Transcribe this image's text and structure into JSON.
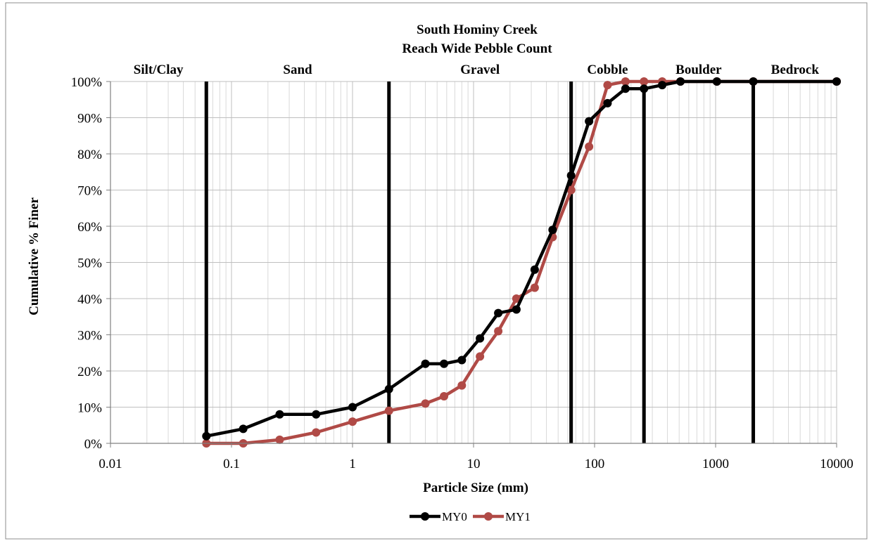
{
  "chart_data": {
    "type": "line",
    "title": "South Hominy Creek",
    "subtitle": "Reach Wide Pebble Count",
    "xlabel": "Particle Size (mm)",
    "ylabel": "Cumulative % Finer",
    "x_scale": "log",
    "xlim": [
      0.01,
      10000
    ],
    "ylim": [
      0,
      100
    ],
    "grid": true,
    "x_ticks": [
      "0.01",
      "0.1",
      "1",
      "10",
      "100",
      "1000",
      "10000"
    ],
    "y_ticks": [
      "0%",
      "10%",
      "20%",
      "30%",
      "40%",
      "50%",
      "60%",
      "70%",
      "80%",
      "90%",
      "100%"
    ],
    "legend_position": "bottom",
    "size_classes": [
      {
        "label": "Silt/Clay",
        "boundary": 0.062
      },
      {
        "label": "Sand",
        "boundary": 2
      },
      {
        "label": "Gravel",
        "boundary": 64
      },
      {
        "label": "Cobble",
        "boundary": 256
      },
      {
        "label": "Boulder",
        "boundary": 2048
      },
      {
        "label": "Bedrock",
        "boundary": null
      }
    ],
    "series": [
      {
        "name": "MY0",
        "color": "#000000",
        "x": [
          0.062,
          0.125,
          0.25,
          0.5,
          1,
          2,
          4,
          5.7,
          8,
          11.3,
          16,
          22.6,
          32,
          45,
          64,
          90,
          128,
          180,
          256,
          362,
          512,
          1024,
          2048,
          10000
        ],
        "y": [
          2,
          4,
          8,
          8,
          10,
          15,
          22,
          22,
          23,
          29,
          36,
          37,
          48,
          59,
          74,
          89,
          94,
          98,
          98,
          99,
          100,
          100,
          100,
          100
        ]
      },
      {
        "name": "MY1",
        "color": "#b04a46",
        "x": [
          0.062,
          0.125,
          0.25,
          0.5,
          1,
          2,
          4,
          5.7,
          8,
          11.3,
          16,
          22.6,
          32,
          45,
          64,
          90,
          128,
          180,
          256,
          362,
          512,
          1024,
          2048,
          10000
        ],
        "y": [
          0,
          0,
          1,
          3,
          6,
          9,
          11,
          13,
          16,
          24,
          31,
          40,
          43,
          57,
          70,
          82,
          99,
          100,
          100,
          100,
          100,
          100,
          100,
          100
        ]
      }
    ]
  }
}
